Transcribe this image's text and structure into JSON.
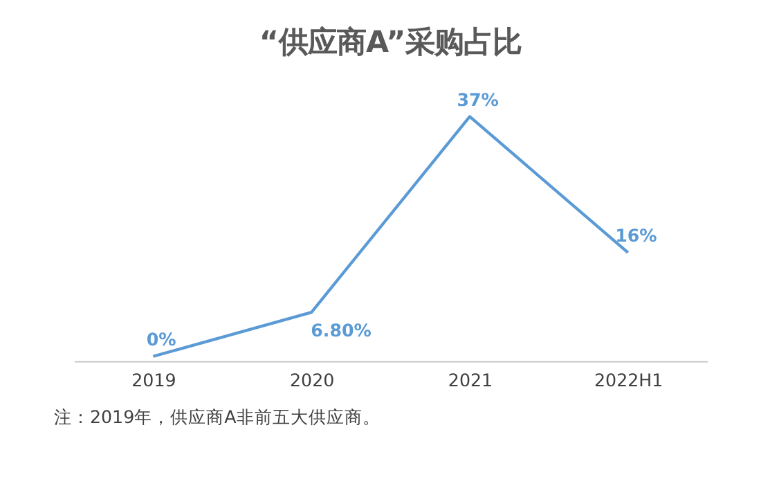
{
  "chart_data": {
    "type": "line",
    "title": "“供应商A”采购占比",
    "categories": [
      "2019",
      "2020",
      "2021",
      "2022H1"
    ],
    "series": [
      {
        "color": "#5b9bd5",
        "values": [
          0,
          6.8,
          37,
          16
        ],
        "value_labels": [
          "0%",
          "6.80%",
          "37%",
          "16%"
        ]
      }
    ],
    "annotations": [
      "注：2019年，供应商A非前五大供应商。"
    ],
    "grid": false,
    "marker": "none",
    "line_style": "solid",
    "tick_labels": "x"
  }
}
